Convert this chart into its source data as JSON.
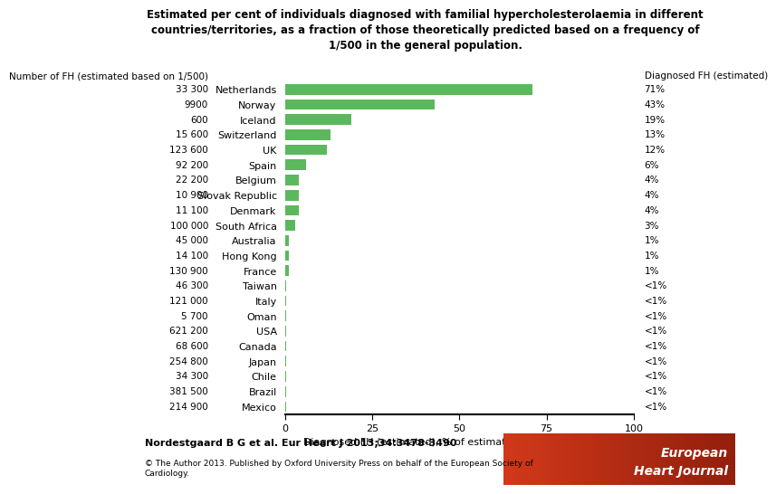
{
  "title": "Estimated per cent of individuals diagnosed with familial hypercholesterolaemia in different\ncountries/territories, as a fraction of those theoretically predicted based on a frequency of\n1/500 in the general population.",
  "countries": [
    "Netherlands",
    "Norway",
    "Iceland",
    "Switzerland",
    "UK",
    "Spain",
    "Belgium",
    "Slovak Republic",
    "Denmark",
    "South Africa",
    "Australia",
    "Hong Kong",
    "France",
    "Taiwan",
    "Italy",
    "Oman",
    "USA",
    "Canada",
    "Japan",
    "Chile",
    "Brazil",
    "Mexico"
  ],
  "fh_numbers": [
    "33 300",
    "9900",
    "600",
    "15 600",
    "123 600",
    "92 200",
    "22 200",
    "10 900",
    "11 100",
    "100 000",
    "45 000",
    "14 100",
    "130 900",
    "46 300",
    "121 000",
    "5 700",
    "621 200",
    "68 600",
    "254 800",
    "34 300",
    "381 500",
    "214 900"
  ],
  "diagnosed_labels": [
    "71%",
    "43%",
    "19%",
    "13%",
    "12%",
    "6%",
    "4%",
    "4%",
    "4%",
    "3%",
    "1%",
    "1%",
    "1%",
    "<1%",
    "<1%",
    "<1%",
    "<1%",
    "<1%",
    "<1%",
    "<1%",
    "<1%",
    "<1%"
  ],
  "values": [
    71,
    43,
    19,
    13,
    12,
    6,
    4,
    4,
    4,
    3,
    1,
    1,
    1,
    0.4,
    0.4,
    0.4,
    0.4,
    0.4,
    0.4,
    0.4,
    0.4,
    0.4
  ],
  "bar_color": "#5cb85c",
  "xlabel": "Diagnosed FH (estimated), % of estimated number in country",
  "left_header": "Number of FH (estimated based on 1/500)",
  "right_header": "Diagnosed FH (estimated)",
  "xlim": [
    0,
    100
  ],
  "xticks": [
    0,
    25,
    50,
    75,
    100
  ],
  "citation": "Nordestgaard B G et al. Eur Heart J 2013;34:3478-3490",
  "copyright": "© The Author 2013. Published by Oxford University Press on behalf of the European Society of\nCardiology.",
  "logo_color1": "#c0392b",
  "logo_color2": "#e74c3c",
  "logo_text1": "European",
  "logo_text2": "Heart Journal",
  "bg_color": "#ffffff"
}
